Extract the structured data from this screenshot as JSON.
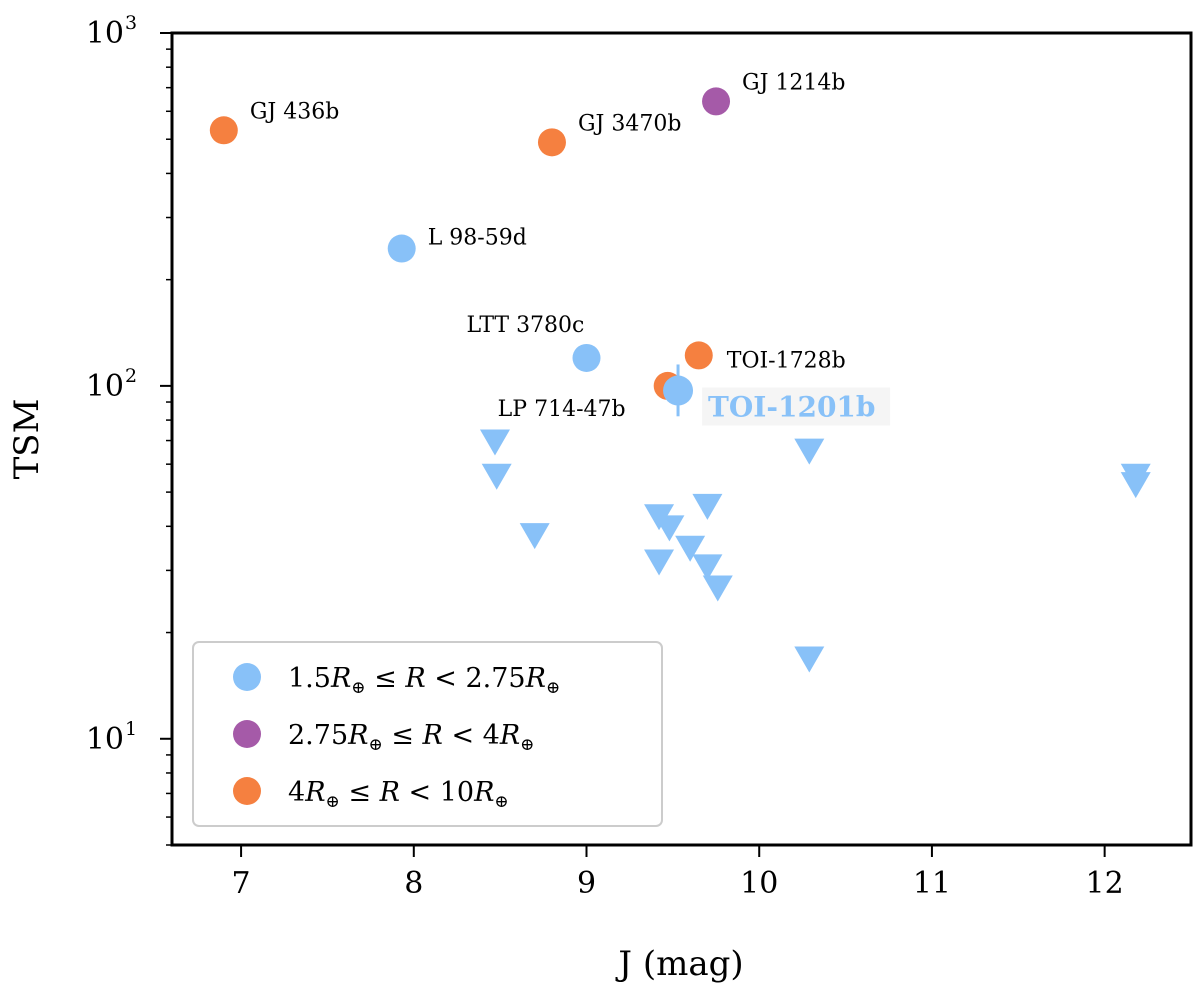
{
  "chart_data": {
    "type": "scatter",
    "xlabel": "J (mag)",
    "ylabel": "TSM",
    "xlim": [
      6.6,
      12.5
    ],
    "ylim": [
      5,
      1000
    ],
    "yscale": "log",
    "x_ticks": [
      "7",
      "8",
      "9",
      "10",
      "11",
      "12"
    ],
    "y_ticks": [
      {
        "base": "10",
        "exp": "1"
      },
      {
        "base": "10",
        "exp": "2"
      },
      {
        "base": "10",
        "exp": "3"
      }
    ],
    "colors": {
      "small": "#88c1f8",
      "medium": "#a55aa8",
      "large": "#f58040"
    },
    "labeled_planets": [
      {
        "name": "GJ 436b",
        "j": 6.9,
        "tsm": 530,
        "group": "large"
      },
      {
        "name": "GJ 3470b",
        "j": 8.8,
        "tsm": 490,
        "group": "large"
      },
      {
        "name": "GJ 1214b",
        "j": 9.75,
        "tsm": 640,
        "group": "medium"
      },
      {
        "name": "L 98-59d",
        "j": 7.93,
        "tsm": 245,
        "group": "small"
      },
      {
        "name": "LTT 3780c",
        "j": 9.0,
        "tsm": 120,
        "group": "small"
      },
      {
        "name": "TOI-1728b",
        "j": 9.65,
        "tsm": 122,
        "group": "large"
      },
      {
        "name": "LP 714-47b",
        "j": 9.47,
        "tsm": 100,
        "group": "large"
      }
    ],
    "highlight": {
      "name": "TOI-1201b",
      "j": 9.53,
      "tsm": 97,
      "err_low": 82,
      "err_high": 115,
      "group": "small"
    },
    "upper_limits": [
      {
        "j": 8.47,
        "tsm": 70
      },
      {
        "j": 8.48,
        "tsm": 56
      },
      {
        "j": 8.7,
        "tsm": 38
      },
      {
        "j": 9.42,
        "tsm": 43
      },
      {
        "j": 9.48,
        "tsm": 40
      },
      {
        "j": 9.42,
        "tsm": 32
      },
      {
        "j": 9.6,
        "tsm": 35
      },
      {
        "j": 9.7,
        "tsm": 46
      },
      {
        "j": 9.7,
        "tsm": 31
      },
      {
        "j": 9.76,
        "tsm": 27
      },
      {
        "j": 10.29,
        "tsm": 66
      },
      {
        "j": 10.29,
        "tsm": 17
      },
      {
        "j": 12.18,
        "tsm": 56
      },
      {
        "j": 12.18,
        "tsm": 53
      }
    ],
    "legend": {
      "location": "lower-left",
      "entries": [
        {
          "group": "small",
          "parts": [
            "1.5",
            "R",
            "⊕",
            " ≤ ",
            "R",
            " < 2.75",
            "R",
            "⊕"
          ]
        },
        {
          "group": "medium",
          "parts": [
            "2.75",
            "R",
            "⊕",
            " ≤ ",
            "R",
            " < 4",
            "R",
            "⊕"
          ]
        },
        {
          "group": "large",
          "parts": [
            "4",
            "R",
            "⊕",
            " ≤ ",
            "R",
            " < 10",
            "R",
            "⊕"
          ]
        }
      ]
    }
  }
}
